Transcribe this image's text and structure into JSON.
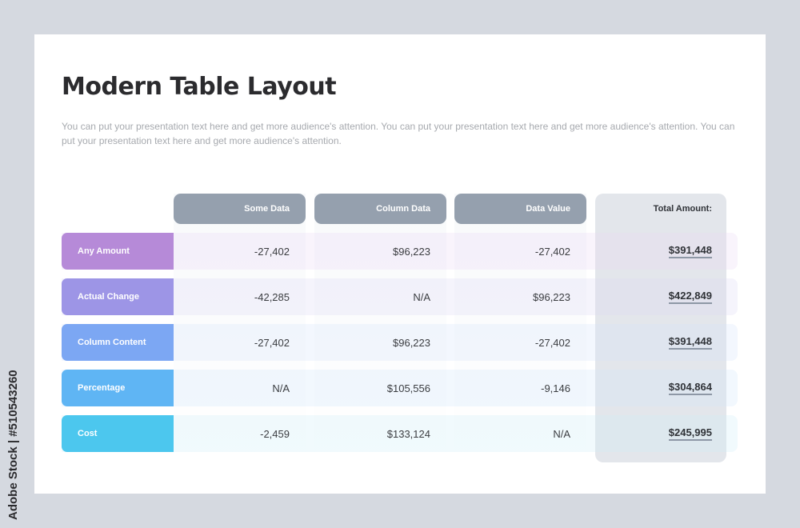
{
  "title": "Modern Table Layout",
  "description": "You can put your presentation text here and get more audience's attention. You can put your presentation text here and get more audience's attention. You can put your presentation text here and get more audience's attention.",
  "headers": [
    "Some Data",
    "Column Data",
    "Data Value"
  ],
  "total_header": "Total Amount:",
  "rows": [
    {
      "label": "Any Amount",
      "color": "#b68ad8",
      "band": "#e9d6f3",
      "values": [
        "-27,402",
        "$96,223",
        "-27,402"
      ],
      "total": "$391,448"
    },
    {
      "label": "Actual Change",
      "color": "#9d95e6",
      "band": "#dcd8f5",
      "values": [
        "-42,285",
        "N/A",
        "$96,223"
      ],
      "total": "$422,849"
    },
    {
      "label": "Column Content",
      "color": "#7ca7f3",
      "band": "#d4e1fb",
      "values": [
        "-27,402",
        "$96,223",
        "-27,402"
      ],
      "total": "$391,448"
    },
    {
      "label": "Percentage",
      "color": "#5fb5f4",
      "band": "#d0e7fa",
      "values": [
        "N/A",
        "$105,556",
        "-9,146"
      ],
      "total": "$304,864"
    },
    {
      "label": "Cost",
      "color": "#4cc7ee",
      "band": "#cdeef9",
      "values": [
        "-2,459",
        "$133,124",
        "N/A"
      ],
      "total": "$245,995"
    }
  ],
  "watermark_id": "Adobe Stock | #510543260"
}
